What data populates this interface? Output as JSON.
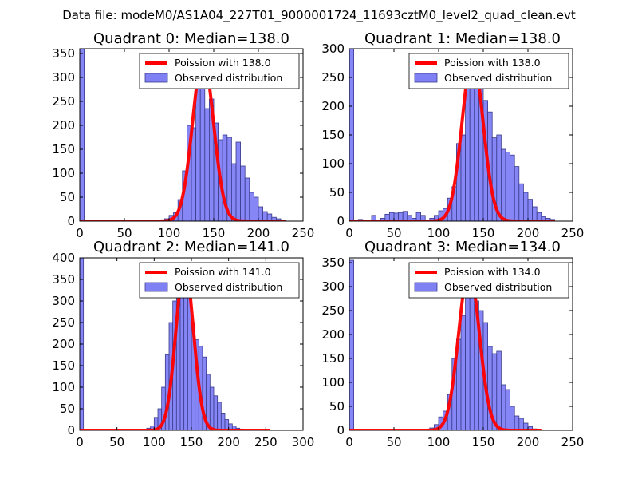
{
  "figure": {
    "suptitle": "Data file: modeM0/AS1A04_227T01_9000001724_11693cztM0_level2_quad_clean.evt"
  },
  "colors": {
    "bar_fill": "#8080f5",
    "bar_edge": "#3a3a8a",
    "poisson_line": "#ff0000",
    "axes": "#000000"
  },
  "chart_data": [
    {
      "type": "bar",
      "title": "Quadrant 0: Median=138.0",
      "median": 138.0,
      "xlim": [
        0,
        250
      ],
      "ylim": [
        0,
        360
      ],
      "xticks": [
        0,
        50,
        100,
        150,
        200,
        250
      ],
      "yticks": [
        0,
        50,
        100,
        150,
        200,
        250,
        300,
        350
      ],
      "bin_width": 5,
      "bins": [
        [
          0,
          360
        ],
        [
          90,
          2
        ],
        [
          95,
          5
        ],
        [
          100,
          12
        ],
        [
          105,
          18
        ],
        [
          110,
          45
        ],
        [
          115,
          105
        ],
        [
          120,
          200
        ],
        [
          125,
          195
        ],
        [
          130,
          330
        ],
        [
          135,
          290
        ],
        [
          140,
          235
        ],
        [
          145,
          255
        ],
        [
          150,
          205
        ],
        [
          155,
          170
        ],
        [
          160,
          180
        ],
        [
          165,
          175
        ],
        [
          170,
          120
        ],
        [
          175,
          165
        ],
        [
          180,
          115
        ],
        [
          185,
          90
        ],
        [
          190,
          60
        ],
        [
          195,
          50
        ],
        [
          200,
          30
        ],
        [
          205,
          20
        ],
        [
          210,
          15
        ],
        [
          215,
          8
        ],
        [
          220,
          5
        ],
        [
          225,
          2
        ]
      ],
      "poisson": {
        "mean": 138.0,
        "x_range": [
          0,
          230
        ],
        "peak": 340
      },
      "legend": {
        "line": "Poission with 138.0",
        "bars": "Observed distribution",
        "position": "top-right"
      }
    },
    {
      "type": "bar",
      "title": "Quadrant 1: Median=138.0",
      "median": 138.0,
      "xlim": [
        0,
        250
      ],
      "ylim": [
        0,
        300
      ],
      "xticks": [
        0,
        50,
        100,
        150,
        200,
        250
      ],
      "yticks": [
        0,
        50,
        100,
        150,
        200,
        250,
        300
      ],
      "bin_width": 5,
      "bins": [
        [
          0,
          300
        ],
        [
          10,
          3
        ],
        [
          25,
          10
        ],
        [
          35,
          5
        ],
        [
          40,
          12
        ],
        [
          45,
          15
        ],
        [
          50,
          14
        ],
        [
          55,
          15
        ],
        [
          60,
          17
        ],
        [
          65,
          10
        ],
        [
          70,
          5
        ],
        [
          75,
          15
        ],
        [
          80,
          10
        ],
        [
          90,
          5
        ],
        [
          95,
          10
        ],
        [
          100,
          18
        ],
        [
          105,
          22
        ],
        [
          110,
          40
        ],
        [
          115,
          60
        ],
        [
          120,
          135
        ],
        [
          125,
          150
        ],
        [
          130,
          250
        ],
        [
          135,
          290
        ],
        [
          140,
          255
        ],
        [
          145,
          250
        ],
        [
          150,
          210
        ],
        [
          155,
          190
        ],
        [
          160,
          145
        ],
        [
          165,
          150
        ],
        [
          170,
          125
        ],
        [
          175,
          120
        ],
        [
          180,
          115
        ],
        [
          185,
          95
        ],
        [
          190,
          65
        ],
        [
          195,
          50
        ],
        [
          200,
          38
        ],
        [
          205,
          25
        ],
        [
          210,
          15
        ],
        [
          215,
          8
        ],
        [
          220,
          5
        ],
        [
          225,
          3
        ]
      ],
      "poisson": {
        "mean": 138.0,
        "x_range": [
          0,
          230
        ],
        "peak": 285
      },
      "legend": {
        "line": "Poission with 138.0",
        "bars": "Observed distribution",
        "position": "top-right"
      }
    },
    {
      "type": "bar",
      "title": "Quadrant 2: Median=141.0",
      "median": 141.0,
      "xlim": [
        0,
        300
      ],
      "ylim": [
        0,
        400
      ],
      "xticks": [
        0,
        50,
        100,
        150,
        200,
        250,
        300
      ],
      "yticks": [
        0,
        50,
        100,
        150,
        200,
        250,
        300,
        350,
        400
      ],
      "bin_width": 5,
      "bins": [
        [
          0,
          400
        ],
        [
          90,
          5
        ],
        [
          95,
          10
        ],
        [
          100,
          30
        ],
        [
          105,
          50
        ],
        [
          110,
          100
        ],
        [
          115,
          175
        ],
        [
          120,
          250
        ],
        [
          125,
          300
        ],
        [
          130,
          355
        ],
        [
          135,
          340
        ],
        [
          140,
          350
        ],
        [
          145,
          320
        ],
        [
          150,
          250
        ],
        [
          155,
          210
        ],
        [
          160,
          195
        ],
        [
          165,
          170
        ],
        [
          170,
          130
        ],
        [
          175,
          100
        ],
        [
          180,
          80
        ],
        [
          185,
          65
        ],
        [
          190,
          40
        ],
        [
          195,
          25
        ],
        [
          200,
          15
        ],
        [
          205,
          10
        ],
        [
          210,
          5
        ],
        [
          215,
          3
        ]
      ],
      "poisson": {
        "mean": 141.0,
        "x_range": [
          0,
          255
        ],
        "peak": 380
      },
      "legend": {
        "line": "Poission with 141.0",
        "bars": "Observed distribution",
        "position": "top-right"
      }
    },
    {
      "type": "bar",
      "title": "Quadrant 3: Median=134.0",
      "median": 134.0,
      "xlim": [
        0,
        250
      ],
      "ylim": [
        0,
        360
      ],
      "xticks": [
        0,
        50,
        100,
        150,
        200,
        250
      ],
      "yticks": [
        0,
        50,
        100,
        150,
        200,
        250,
        300,
        350
      ],
      "bin_width": 5,
      "bins": [
        [
          0,
          355
        ],
        [
          90,
          5
        ],
        [
          95,
          12
        ],
        [
          100,
          28
        ],
        [
          105,
          40
        ],
        [
          110,
          75
        ],
        [
          115,
          150
        ],
        [
          120,
          190
        ],
        [
          125,
          240
        ],
        [
          130,
          310
        ],
        [
          135,
          290
        ],
        [
          140,
          270
        ],
        [
          145,
          250
        ],
        [
          150,
          225
        ],
        [
          155,
          175
        ],
        [
          160,
          160
        ],
        [
          165,
          165
        ],
        [
          170,
          95
        ],
        [
          175,
          85
        ],
        [
          180,
          50
        ],
        [
          185,
          30
        ],
        [
          190,
          25
        ],
        [
          195,
          15
        ],
        [
          200,
          8
        ],
        [
          205,
          3
        ]
      ],
      "poisson": {
        "mean": 134.0,
        "x_range": [
          0,
          215
        ],
        "peak": 335
      },
      "legend": {
        "line": "Poission with 134.0",
        "bars": "Observed distribution",
        "position": "top-right"
      }
    }
  ]
}
